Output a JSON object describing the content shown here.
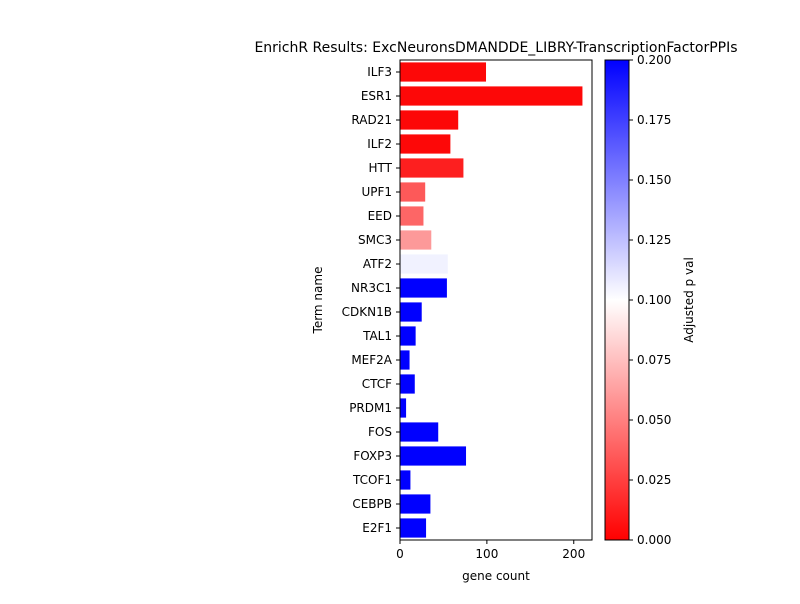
{
  "chart_data": {
    "type": "bar",
    "orientation": "horizontal",
    "title": "EnrichR Results: ExcNeuronsDMANDDE_LIBRY-TranscriptionFactorPPIs",
    "xlabel": "gene count",
    "ylabel": "Term name",
    "xlim": [
      0,
      221
    ],
    "xticks": [
      0,
      100,
      200
    ],
    "categories": [
      "ILF3",
      "ESR1",
      "RAD21",
      "ILF2",
      "HTT",
      "UPF1",
      "EED",
      "SMC3",
      "ATF2",
      "NR3C1",
      "CDKN1B",
      "TAL1",
      "MEF2A",
      "CTCF",
      "PRDM1",
      "FOS",
      "FOXP3",
      "TCOF1",
      "CEBPB",
      "E2F1"
    ],
    "values": [
      99,
      210,
      67,
      58,
      73,
      29,
      27,
      36,
      55,
      54,
      25,
      18,
      11,
      17,
      7,
      44,
      76,
      12,
      35,
      30
    ],
    "adjusted_p_values": [
      0.003,
      0.003,
      0.003,
      0.003,
      0.012,
      0.035,
      0.04,
      0.06,
      0.105,
      0.2,
      0.2,
      0.2,
      0.2,
      0.2,
      0.2,
      0.2,
      0.2,
      0.2,
      0.2,
      0.2
    ],
    "colorbar": {
      "label": "Adjusted p val",
      "range": [
        0,
        0.2
      ],
      "ticks": [
        "0.000",
        "0.025",
        "0.050",
        "0.075",
        "0.100",
        "0.125",
        "0.150",
        "0.175",
        "0.200"
      ],
      "colormap": [
        "#ff0000",
        "#ffffff",
        "#0000ff"
      ]
    }
  }
}
